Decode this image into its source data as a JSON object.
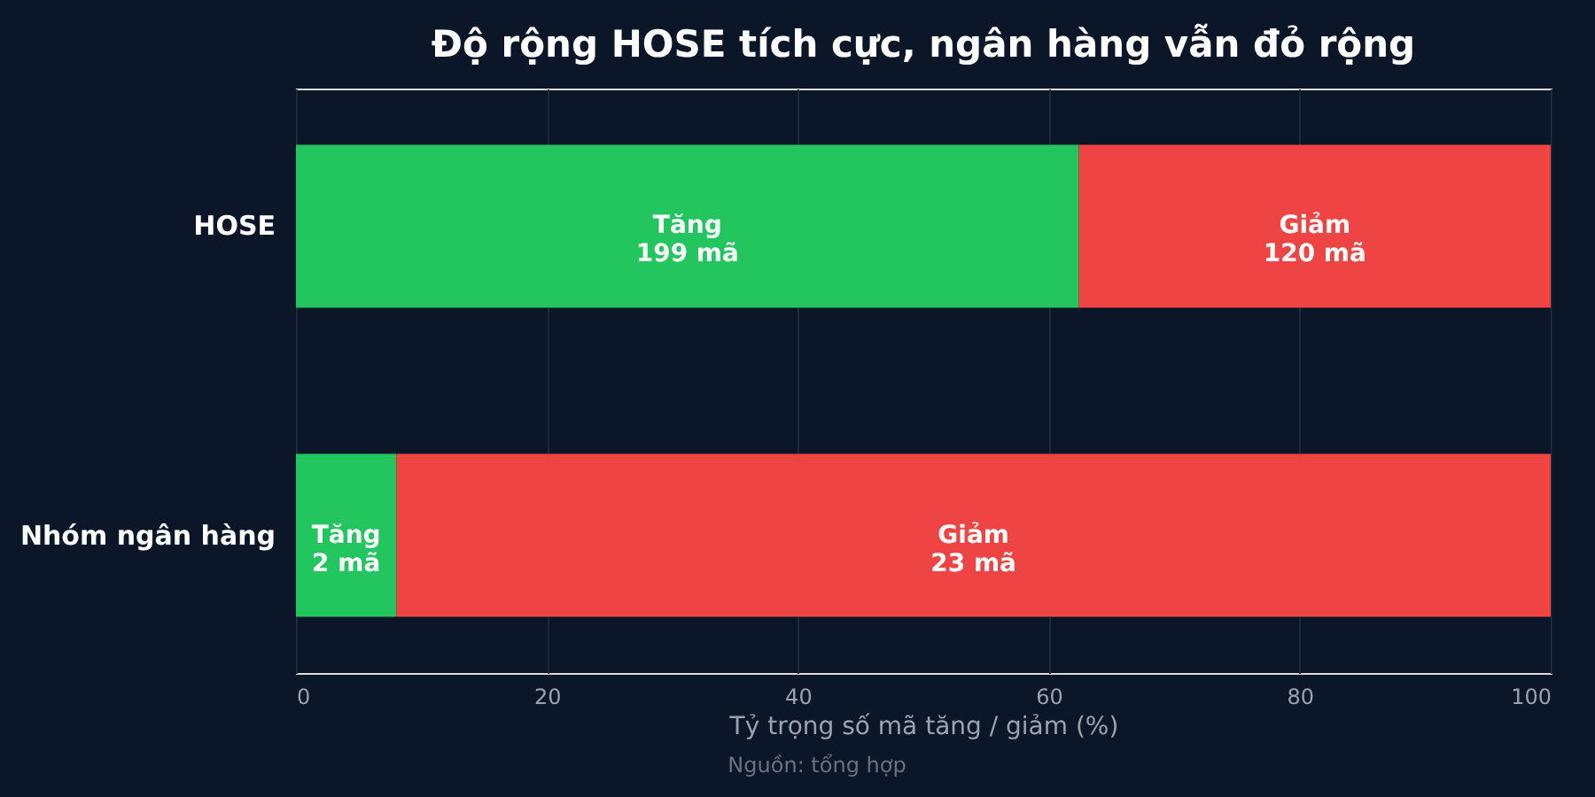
{
  "chart_data": {
    "type": "bar",
    "orientation": "horizontal",
    "stacked": true,
    "title": "Độ rộng HOSE tích cực, ngân hàng vẫn đỏ rộng",
    "xlabel": "Tỷ trọng số mã tăng / giảm (%)",
    "categories": [
      "HOSE",
      "Nhóm ngân hàng"
    ],
    "series": [
      {
        "name": "Tăng",
        "color": "#22c55e",
        "values": [
          62.4,
          8
        ]
      },
      {
        "name": "Giảm",
        "color": "#ef4444",
        "values": [
          37.6,
          92
        ]
      }
    ],
    "xlim": [
      0,
      100
    ],
    "xticks": [
      0,
      20,
      40,
      60,
      80,
      100
    ],
    "grid": "x",
    "legend": false,
    "annotations": [
      "199 mã",
      "120 mã",
      "2 mã",
      "23 mã",
      "Nguồn: tổng hợp"
    ]
  }
}
